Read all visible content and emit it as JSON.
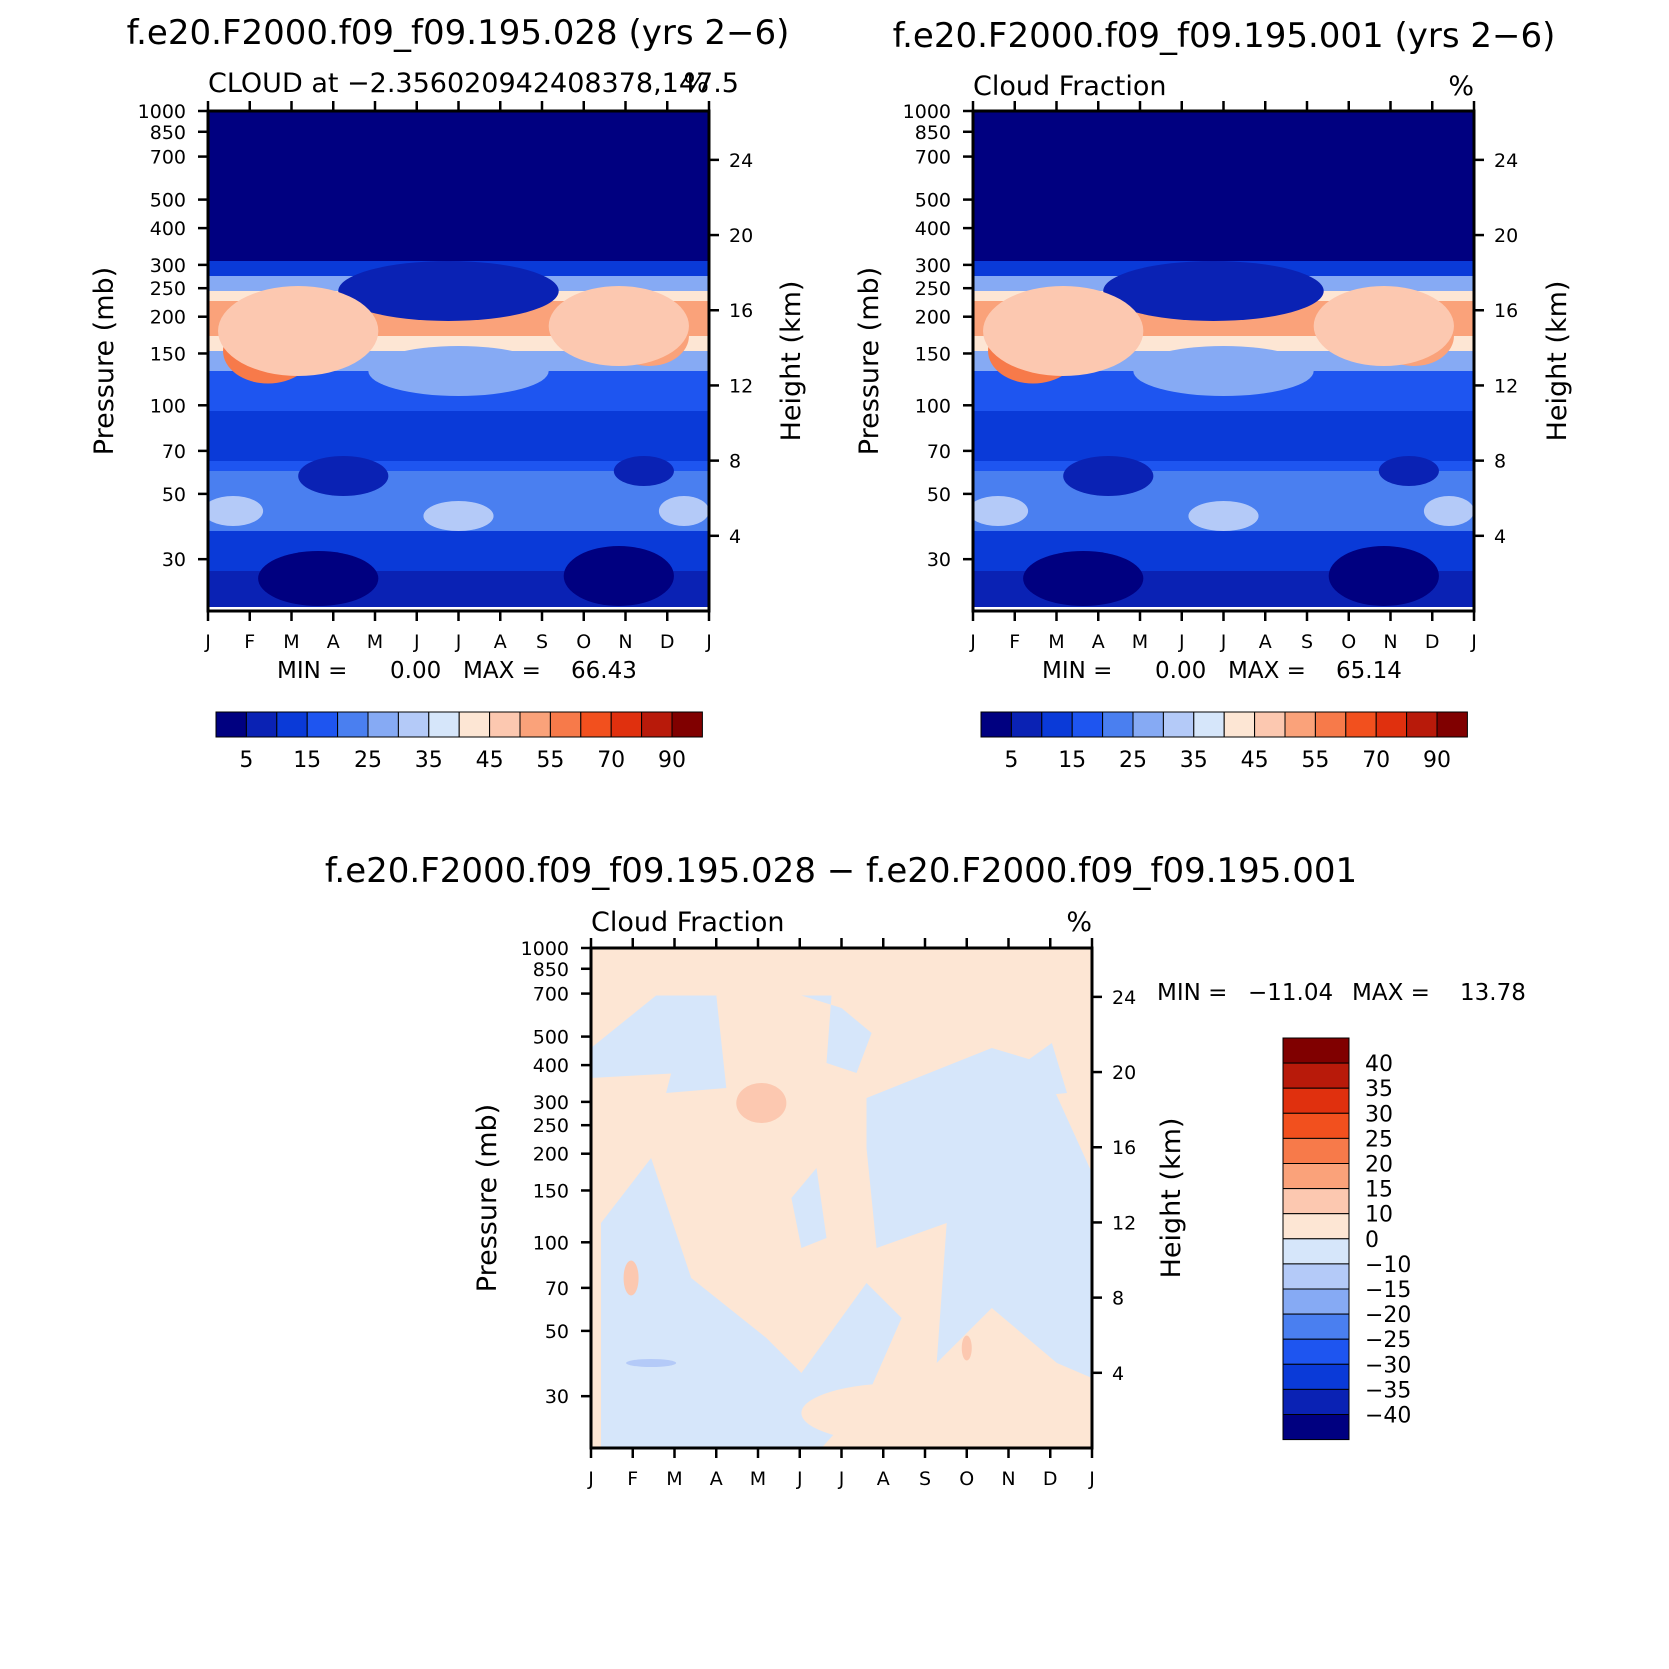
{
  "chart_data": [
    {
      "type": "heatmap",
      "case_title": "f.e20.F2000.f09_f09.195.028 (yrs 2−6)",
      "title_left": "CLOUD at −2.356020942408378,147.5",
      "title_right": "%",
      "ylabel": "Pressure (mb)",
      "ylabel_right": "Height (km)",
      "x_ticks": [
        "J",
        "F",
        "M",
        "A",
        "M",
        "J",
        "J",
        "A",
        "S",
        "O",
        "N",
        "D",
        "J"
      ],
      "y_ticks": [
        "30",
        "50",
        "70",
        "100",
        "150",
        "200",
        "250",
        "300",
        "400",
        "500",
        "700",
        "850",
        "1000"
      ],
      "y_ticks_right": [
        "24",
        "20",
        "16",
        "12",
        "8",
        "4"
      ],
      "ylim": [
        1000,
        20
      ],
      "stats": {
        "min_label": "MIN =",
        "min": "0.00",
        "max_label": "MAX =",
        "max": "66.43"
      },
      "colorbar_labels": [
        "5",
        "15",
        "25",
        "35",
        "45",
        "55",
        "70",
        "90"
      ],
      "profile": [
        2,
        2,
        30,
        62,
        42,
        15,
        20,
        10,
        18,
        12,
        6
      ]
    },
    {
      "type": "heatmap",
      "case_title": "f.e20.F2000.f09_f09.195.001 (yrs 2−6)",
      "title_left": "Cloud Fraction",
      "title_right": "%",
      "ylabel": "Pressure (mb)",
      "ylabel_right": "Height (km)",
      "x_ticks": [
        "J",
        "F",
        "M",
        "A",
        "M",
        "J",
        "J",
        "A",
        "S",
        "O",
        "N",
        "D",
        "J"
      ],
      "y_ticks": [
        "30",
        "50",
        "70",
        "100",
        "150",
        "200",
        "250",
        "300",
        "400",
        "500",
        "700",
        "850",
        "1000"
      ],
      "y_ticks_right": [
        "24",
        "20",
        "16",
        "12",
        "8",
        "4"
      ],
      "ylim": [
        1000,
        20
      ],
      "stats": {
        "min_label": "MIN =",
        "min": "0.00",
        "max_label": "MAX =",
        "max": "65.14"
      },
      "colorbar_labels": [
        "5",
        "15",
        "25",
        "35",
        "45",
        "55",
        "70",
        "90"
      ],
      "profile": [
        2,
        2,
        28,
        60,
        40,
        14,
        22,
        10,
        20,
        12,
        6
      ]
    },
    {
      "type": "heatmap",
      "case_title": "f.e20.F2000.f09_f09.195.028 − f.e20.F2000.f09_f09.195.001",
      "title_left": "Cloud Fraction",
      "title_right": "%",
      "ylabel": "Pressure (mb)",
      "ylabel_right": "Height (km)",
      "x_ticks": [
        "J",
        "F",
        "M",
        "A",
        "M",
        "J",
        "J",
        "A",
        "S",
        "O",
        "N",
        "D",
        "J"
      ],
      "y_ticks": [
        "30",
        "50",
        "70",
        "100",
        "150",
        "200",
        "250",
        "300",
        "400",
        "500",
        "700",
        "850",
        "1000"
      ],
      "y_ticks_right": [
        "24",
        "20",
        "16",
        "12",
        "8",
        "4"
      ],
      "ylim": [
        1000,
        20
      ],
      "stats": {
        "min_label": "MIN =",
        "min": "−11.04",
        "max_label": "MAX =",
        "max": "13.78"
      },
      "colorbar_labels": [
        "40",
        "35",
        "30",
        "25",
        "20",
        "15",
        "10",
        "0",
        "−10",
        "−15",
        "−20",
        "−25",
        "−30",
        "−35",
        "−40"
      ]
    }
  ],
  "colors": {
    "abs_scale": [
      "#000080",
      "#0a22b4",
      "#0a3ad8",
      "#1e55f0",
      "#4a7ff0",
      "#86aaf4",
      "#b4caf8",
      "#d6e6fa",
      "#fde6d4",
      "#fcc8b0",
      "#faa27a",
      "#f77a4a",
      "#f2501e",
      "#e0300e",
      "#b81a0a",
      "#800000"
    ],
    "diff_scale": [
      "#800000",
      "#b81a0a",
      "#e0300e",
      "#f2501e",
      "#f77a4a",
      "#faa27a",
      "#fcc8b0",
      "#fde6d4",
      "#d6e6fa",
      "#b4caf8",
      "#86aaf4",
      "#4a7ff0",
      "#1e55f0",
      "#0a3ad8",
      "#0a22b4",
      "#000080"
    ],
    "frame": "#000000"
  }
}
